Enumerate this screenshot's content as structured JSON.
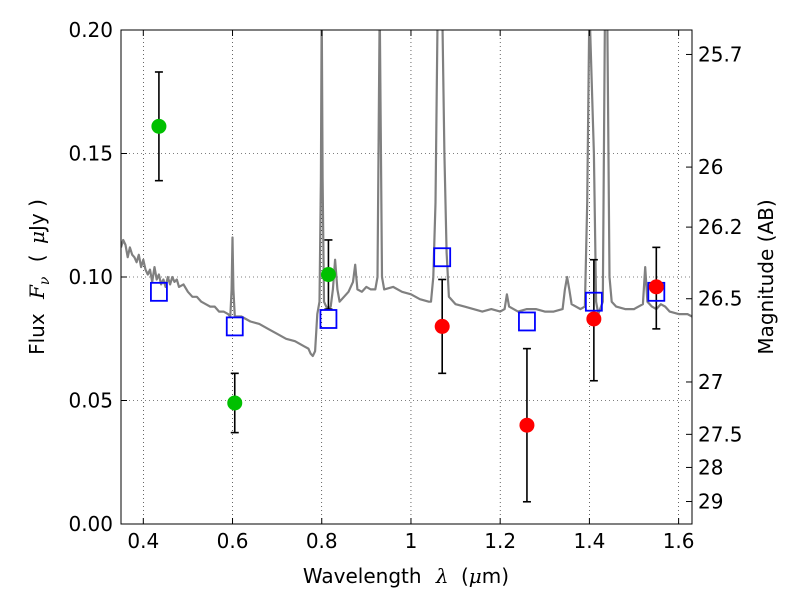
{
  "chart_data": {
    "type": "scatter",
    "xlabel_prefix": "Wavelength",
    "xlabel_symbol": "λ",
    "xlabel_unit_open": "(",
    "xlabel_unit_mu": "μ",
    "xlabel_unit_rest": "m)",
    "ylabel_prefix": "Flux",
    "ylabel_symbol": "F",
    "ylabel_subscript": "ν",
    "ylabel_unit_open": "(",
    "ylabel_unit_mu": "μ",
    "ylabel_unit_rest": "Jy )",
    "y2label": "Magnitude (AB)",
    "xlim": [
      0.35,
      1.63
    ],
    "ylim": [
      0.0,
      0.2
    ],
    "x_ticks": [
      0.4,
      0.6,
      0.8,
      1.0,
      1.2,
      1.4,
      1.6
    ],
    "x_tick_labels": [
      "0.4",
      "0.6",
      "0.8",
      "1",
      "1.2",
      "1.4",
      "1.6"
    ],
    "y_ticks": [
      0.0,
      0.05,
      0.1,
      0.15,
      0.2
    ],
    "y_tick_labels": [
      "0.00",
      "0.05",
      "0.10",
      "0.15",
      "0.20"
    ],
    "y2_ticks": [
      {
        "label": "25.7",
        "flux": 0.1901
      },
      {
        "label": "26",
        "flux": 0.1445
      },
      {
        "label": "26.2",
        "flux": 0.1202
      },
      {
        "label": "26.5",
        "flux": 0.0912
      },
      {
        "label": "27",
        "flux": 0.0575
      },
      {
        "label": "27.5",
        "flux": 0.0363
      },
      {
        "label": "28",
        "flux": 0.0229
      },
      {
        "label": "29",
        "flux": 0.0091
      }
    ],
    "grid": true,
    "series": [
      {
        "name": "model spectrum",
        "kind": "line",
        "color": "#808080",
        "points": [
          [
            0.35,
            0.112
          ],
          [
            0.355,
            0.115
          ],
          [
            0.36,
            0.113
          ],
          [
            0.365,
            0.108
          ],
          [
            0.37,
            0.112
          ],
          [
            0.375,
            0.109
          ],
          [
            0.38,
            0.108
          ],
          [
            0.385,
            0.106
          ],
          [
            0.39,
            0.109
          ],
          [
            0.395,
            0.104
          ],
          [
            0.4,
            0.107
          ],
          [
            0.405,
            0.103
          ],
          [
            0.41,
            0.101
          ],
          [
            0.415,
            0.103
          ],
          [
            0.42,
            0.098
          ],
          [
            0.425,
            0.104
          ],
          [
            0.43,
            0.099
          ],
          [
            0.435,
            0.101
          ],
          [
            0.44,
            0.097
          ],
          [
            0.445,
            0.099
          ],
          [
            0.45,
            0.096
          ],
          [
            0.455,
            0.1
          ],
          [
            0.46,
            0.097
          ],
          [
            0.465,
            0.1
          ],
          [
            0.47,
            0.098
          ],
          [
            0.475,
            0.099
          ],
          [
            0.48,
            0.096
          ],
          [
            0.49,
            0.097
          ],
          [
            0.5,
            0.094
          ],
          [
            0.51,
            0.092
          ],
          [
            0.52,
            0.092
          ],
          [
            0.53,
            0.09
          ],
          [
            0.54,
            0.089
          ],
          [
            0.55,
            0.088
          ],
          [
            0.56,
            0.088
          ],
          [
            0.57,
            0.086
          ],
          [
            0.58,
            0.086
          ],
          [
            0.59,
            0.085
          ],
          [
            0.595,
            0.084
          ],
          [
            0.598,
            0.095
          ],
          [
            0.6,
            0.116
          ],
          [
            0.602,
            0.095
          ],
          [
            0.605,
            0.084
          ],
          [
            0.62,
            0.084
          ],
          [
            0.64,
            0.082
          ],
          [
            0.66,
            0.081
          ],
          [
            0.68,
            0.079
          ],
          [
            0.7,
            0.077
          ],
          [
            0.72,
            0.075
          ],
          [
            0.74,
            0.074
          ],
          [
            0.76,
            0.072
          ],
          [
            0.77,
            0.071
          ],
          [
            0.775,
            0.069
          ],
          [
            0.78,
            0.068
          ],
          [
            0.785,
            0.07
          ],
          [
            0.79,
            0.085
          ],
          [
            0.795,
            0.09
          ],
          [
            0.798,
            0.14
          ],
          [
            0.8,
            0.21
          ],
          [
            0.802,
            0.14
          ],
          [
            0.805,
            0.09
          ],
          [
            0.81,
            0.088
          ],
          [
            0.815,
            0.087
          ],
          [
            0.82,
            0.088
          ],
          [
            0.825,
            0.095
          ],
          [
            0.83,
            0.107
          ],
          [
            0.835,
            0.095
          ],
          [
            0.84,
            0.09
          ],
          [
            0.85,
            0.092
          ],
          [
            0.86,
            0.094
          ],
          [
            0.87,
            0.098
          ],
          [
            0.875,
            0.105
          ],
          [
            0.88,
            0.095
          ],
          [
            0.89,
            0.094
          ],
          [
            0.9,
            0.096
          ],
          [
            0.91,
            0.095
          ],
          [
            0.92,
            0.095
          ],
          [
            0.925,
            0.1
          ],
          [
            0.93,
            0.21
          ],
          [
            0.935,
            0.1
          ],
          [
            0.94,
            0.095
          ],
          [
            0.96,
            0.096
          ],
          [
            0.98,
            0.094
          ],
          [
            1.0,
            0.093
          ],
          [
            1.02,
            0.091
          ],
          [
            1.04,
            0.09
          ],
          [
            1.045,
            0.09
          ],
          [
            1.05,
            0.1
          ],
          [
            1.055,
            0.13
          ],
          [
            1.06,
            0.21
          ],
          [
            1.07,
            0.21
          ],
          [
            1.075,
            0.15
          ],
          [
            1.08,
            0.11
          ],
          [
            1.085,
            0.092
          ],
          [
            1.1,
            0.089
          ],
          [
            1.12,
            0.088
          ],
          [
            1.14,
            0.087
          ],
          [
            1.16,
            0.086
          ],
          [
            1.18,
            0.087
          ],
          [
            1.2,
            0.086
          ],
          [
            1.21,
            0.087
          ],
          [
            1.215,
            0.093
          ],
          [
            1.22,
            0.088
          ],
          [
            1.24,
            0.086
          ],
          [
            1.26,
            0.087
          ],
          [
            1.28,
            0.087
          ],
          [
            1.3,
            0.086
          ],
          [
            1.32,
            0.086
          ],
          [
            1.34,
            0.087
          ],
          [
            1.345,
            0.095
          ],
          [
            1.35,
            0.1
          ],
          [
            1.355,
            0.095
          ],
          [
            1.36,
            0.089
          ],
          [
            1.38,
            0.087
          ],
          [
            1.39,
            0.088
          ],
          [
            1.395,
            0.13
          ],
          [
            1.4,
            0.21
          ],
          [
            1.41,
            0.15
          ],
          [
            1.415,
            0.09
          ],
          [
            1.42,
            0.085
          ],
          [
            1.43,
            0.09
          ],
          [
            1.435,
            0.21
          ],
          [
            1.44,
            0.21
          ],
          [
            1.445,
            0.1
          ],
          [
            1.45,
            0.09
          ],
          [
            1.46,
            0.088
          ],
          [
            1.48,
            0.087
          ],
          [
            1.5,
            0.087
          ],
          [
            1.52,
            0.089
          ],
          [
            1.525,
            0.104
          ],
          [
            1.53,
            0.09
          ],
          [
            1.54,
            0.088
          ],
          [
            1.55,
            0.087
          ],
          [
            1.56,
            0.089
          ],
          [
            1.57,
            0.088
          ],
          [
            1.58,
            0.086
          ],
          [
            1.6,
            0.085
          ],
          [
            1.62,
            0.085
          ],
          [
            1.63,
            0.084
          ]
        ]
      },
      {
        "name": "green measurements",
        "kind": "points_errorbars",
        "color": "#00c000",
        "points": [
          {
            "x": 0.435,
            "y": 0.161,
            "ylo": 0.139,
            "yhi": 0.183
          },
          {
            "x": 0.605,
            "y": 0.049,
            "ylo": 0.037,
            "yhi": 0.061
          },
          {
            "x": 0.815,
            "y": 0.101,
            "ylo": 0.087,
            "yhi": 0.115
          }
        ]
      },
      {
        "name": "red measurements",
        "kind": "points_errorbars",
        "color": "#ff0000",
        "points": [
          {
            "x": 1.07,
            "y": 0.08,
            "ylo": 0.061,
            "yhi": 0.099
          },
          {
            "x": 1.26,
            "y": 0.04,
            "ylo": 0.009,
            "yhi": 0.071
          },
          {
            "x": 1.41,
            "y": 0.083,
            "ylo": 0.058,
            "yhi": 0.107
          },
          {
            "x": 1.55,
            "y": 0.096,
            "ylo": 0.079,
            "yhi": 0.112
          }
        ]
      },
      {
        "name": "model band fluxes",
        "kind": "open_squares",
        "color": "#0000ff",
        "points": [
          {
            "x": 0.435,
            "y": 0.094
          },
          {
            "x": 0.605,
            "y": 0.08
          },
          {
            "x": 0.815,
            "y": 0.083
          },
          {
            "x": 1.07,
            "y": 0.108
          },
          {
            "x": 1.26,
            "y": 0.082
          },
          {
            "x": 1.41,
            "y": 0.09
          },
          {
            "x": 1.55,
            "y": 0.094
          }
        ]
      }
    ]
  }
}
